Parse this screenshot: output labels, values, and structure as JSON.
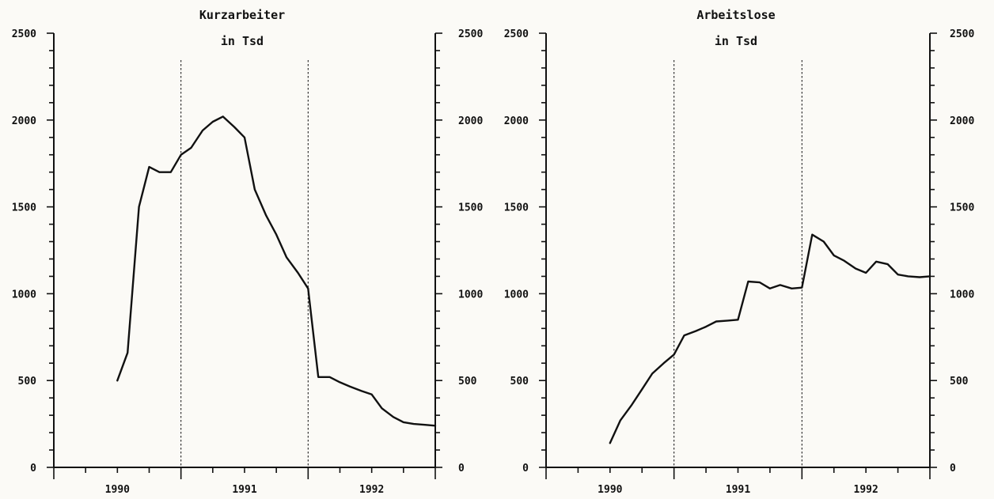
{
  "chart_data": [
    {
      "type": "line",
      "title_lines": [
        "Kurzarbeiter",
        "in Tsd"
      ],
      "ylim": [
        0,
        2500
      ],
      "yticks": [
        0,
        500,
        1000,
        1500,
        2000,
        2500
      ],
      "ytick_labels": [
        "0",
        "500",
        "1000",
        "1500",
        "2000",
        "2500"
      ],
      "yaxis_right": true,
      "year_labels": [
        "1990",
        "1991",
        "1992"
      ],
      "year_dividers": [
        1991.0,
        1992.0
      ],
      "x": [
        1990.5,
        1990.58,
        1990.67,
        1990.75,
        1990.83,
        1990.92,
        1991.0,
        1991.08,
        1991.17,
        1991.25,
        1991.33,
        1991.42,
        1991.5,
        1991.58,
        1991.67,
        1991.75,
        1991.83,
        1991.92,
        1992.0,
        1992.08,
        1992.17,
        1992.25,
        1992.33,
        1992.42,
        1992.5,
        1992.58,
        1992.67,
        1992.75,
        1992.83,
        1992.92,
        1993.0
      ],
      "values": [
        500,
        660,
        1500,
        1730,
        1700,
        1700,
        1800,
        1840,
        1940,
        1990,
        2020,
        1960,
        1900,
        1600,
        1450,
        1340,
        1210,
        1120,
        1030,
        520,
        520,
        490,
        465,
        440,
        420,
        340,
        290,
        260,
        250,
        245,
        240
      ],
      "line_color": "#111111"
    },
    {
      "type": "line",
      "title_lines": [
        "Arbeitslose",
        "in Tsd"
      ],
      "ylim": [
        0,
        2500
      ],
      "yticks": [
        0,
        500,
        1000,
        1500,
        2000,
        2500
      ],
      "ytick_labels": [
        "0",
        "500",
        "1000",
        "1500",
        "2000",
        "2500"
      ],
      "yaxis_right": true,
      "year_labels": [
        "1990",
        "1991",
        "1992"
      ],
      "year_dividers": [
        1991.0,
        1992.0
      ],
      "x": [
        1990.5,
        1990.58,
        1990.67,
        1990.75,
        1990.83,
        1990.92,
        1991.0,
        1991.08,
        1991.17,
        1991.25,
        1991.33,
        1991.42,
        1991.5,
        1991.58,
        1991.67,
        1991.75,
        1991.83,
        1991.92,
        1992.0,
        1992.08,
        1992.17,
        1992.25,
        1992.33,
        1992.42,
        1992.5,
        1992.58,
        1992.67,
        1992.75,
        1992.83,
        1992.92,
        1993.0
      ],
      "values": [
        140,
        270,
        360,
        450,
        540,
        600,
        650,
        760,
        785,
        810,
        840,
        845,
        850,
        1070,
        1065,
        1030,
        1050,
        1030,
        1035,
        1340,
        1300,
        1220,
        1190,
        1145,
        1120,
        1185,
        1170,
        1110,
        1100,
        1095,
        1100
      ],
      "line_color": "#111111"
    }
  ]
}
